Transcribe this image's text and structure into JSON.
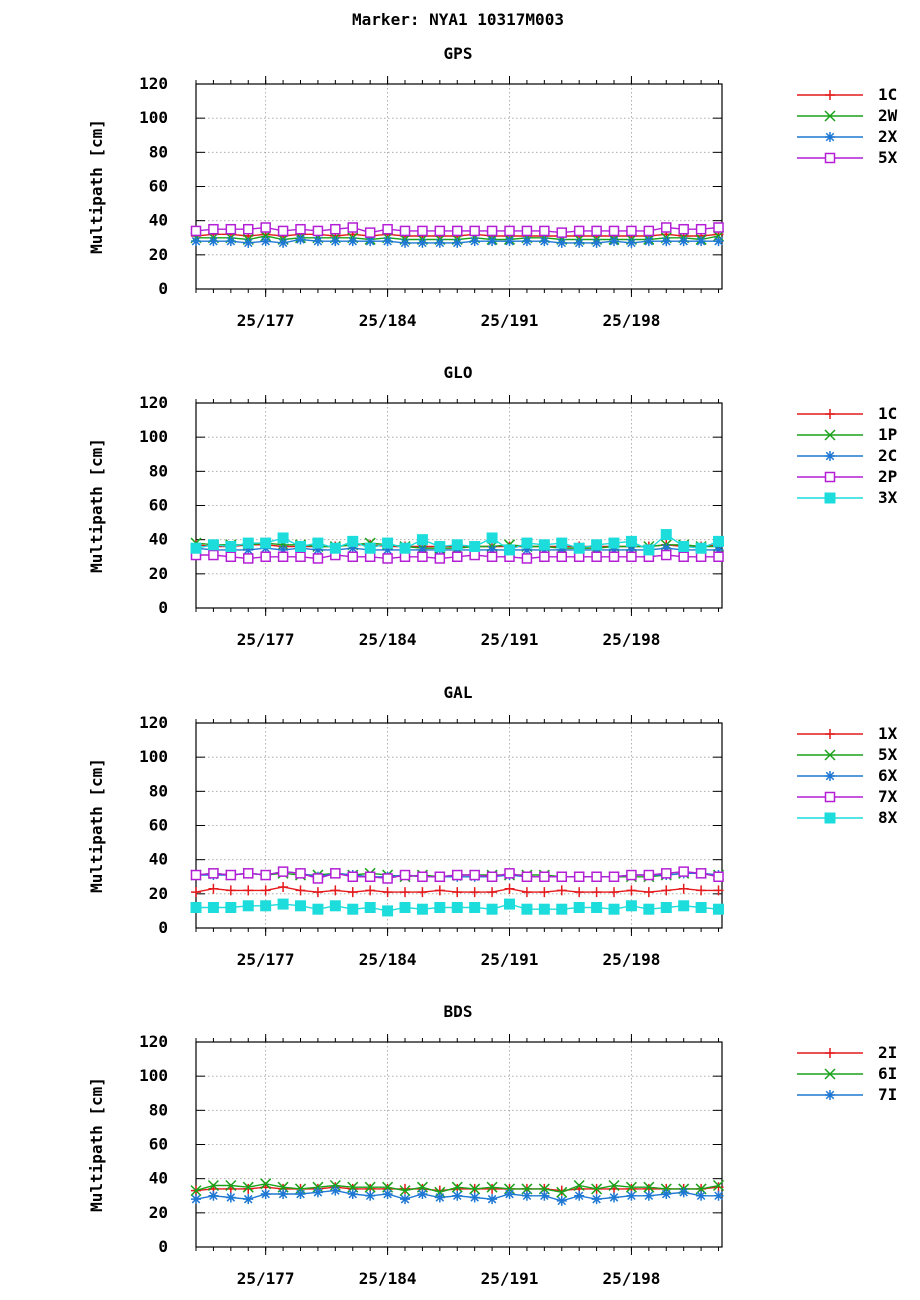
{
  "figure_title": "Marker: NYA1 10317M003",
  "chart_data": [
    {
      "type": "line",
      "title": "GPS",
      "ylabel": "Multipath [cm]",
      "ylim": [
        0,
        120
      ],
      "yticks": [
        "0",
        "20",
        "40",
        "60",
        "80",
        "100",
        "120"
      ],
      "x_range": [
        173,
        203.2
      ],
      "xticks": [
        {
          "value": 177,
          "label": "25/177"
        },
        {
          "value": 184,
          "label": "25/184"
        },
        {
          "value": 191,
          "label": "25/191"
        },
        {
          "value": 198,
          "label": "25/198"
        }
      ],
      "grid": true,
      "legend_position": "right",
      "x": [
        173,
        174,
        175,
        176,
        177,
        178,
        179,
        180,
        181,
        182,
        183,
        184,
        185,
        186,
        187,
        188,
        189,
        190,
        191,
        192,
        193,
        194,
        195,
        196,
        197,
        198,
        199,
        200,
        201,
        202,
        203
      ],
      "series": [
        {
          "name": "1C",
          "color": "#e41a1c",
          "marker": "plus",
          "values": [
            31,
            32,
            32,
            31,
            32,
            31,
            32,
            32,
            31,
            32,
            31,
            32,
            31,
            31,
            31,
            31,
            32,
            31,
            31,
            31,
            31,
            31,
            31,
            31,
            31,
            31,
            31,
            32,
            31,
            31,
            32
          ]
        },
        {
          "name": "2W",
          "color": "#1aa31a",
          "marker": "x",
          "values": [
            30,
            30,
            30,
            29,
            31,
            29,
            30,
            30,
            30,
            30,
            29,
            30,
            29,
            29,
            29,
            29,
            30,
            29,
            29,
            30,
            30,
            29,
            29,
            29,
            29,
            29,
            29,
            30,
            30,
            29,
            31
          ]
        },
        {
          "name": "2X",
          "color": "#1f78d4",
          "marker": "star",
          "values": [
            28,
            28,
            28,
            27,
            28,
            27,
            29,
            28,
            28,
            28,
            28,
            28,
            27,
            27,
            27,
            27,
            28,
            28,
            28,
            28,
            28,
            27,
            27,
            27,
            28,
            27,
            28,
            28,
            28,
            28,
            28
          ]
        },
        {
          "name": "5X",
          "color": "#b41fd6",
          "marker": "square",
          "values": [
            34,
            35,
            35,
            35,
            36,
            34,
            35,
            34,
            35,
            36,
            33,
            35,
            34,
            34,
            34,
            34,
            34,
            34,
            34,
            34,
            34,
            33,
            34,
            34,
            34,
            34,
            34,
            36,
            35,
            35,
            36
          ]
        }
      ]
    },
    {
      "type": "line",
      "title": "GLO",
      "ylabel": "Multipath [cm]",
      "ylim": [
        0,
        120
      ],
      "yticks": [
        "0",
        "20",
        "40",
        "60",
        "80",
        "100",
        "120"
      ],
      "x_range": [
        173,
        203.2
      ],
      "xticks": [
        {
          "value": 177,
          "label": "25/177"
        },
        {
          "value": 184,
          "label": "25/184"
        },
        {
          "value": 191,
          "label": "25/191"
        },
        {
          "value": 198,
          "label": "25/198"
        }
      ],
      "grid": true,
      "legend_position": "right",
      "x": [
        173,
        174,
        175,
        176,
        177,
        178,
        179,
        180,
        181,
        182,
        183,
        184,
        185,
        186,
        187,
        188,
        189,
        190,
        191,
        192,
        193,
        194,
        195,
        196,
        197,
        198,
        199,
        200,
        201,
        202,
        203
      ],
      "series": [
        {
          "name": "1C",
          "color": "#e41a1c",
          "marker": "plus",
          "values": [
            37,
            36,
            36,
            37,
            37,
            36,
            36,
            36,
            36,
            37,
            37,
            36,
            36,
            36,
            36,
            36,
            36,
            36,
            36,
            36,
            36,
            36,
            36,
            36,
            36,
            36,
            36,
            37,
            36,
            36,
            37
          ]
        },
        {
          "name": "1P",
          "color": "#1aa31a",
          "marker": "x",
          "values": [
            38,
            37,
            37,
            37,
            38,
            37,
            37,
            36,
            36,
            37,
            38,
            37,
            36,
            35,
            35,
            35,
            36,
            36,
            37,
            36,
            36,
            35,
            35,
            35,
            36,
            36,
            36,
            37,
            37,
            36,
            36
          ]
        },
        {
          "name": "2C",
          "color": "#1f78d4",
          "marker": "star",
          "values": [
            35,
            34,
            34,
            34,
            35,
            34,
            35,
            34,
            34,
            35,
            34,
            34,
            34,
            34,
            34,
            34,
            34,
            34,
            34,
            34,
            34,
            34,
            34,
            34,
            34,
            34,
            34,
            35,
            34,
            34,
            34
          ]
        },
        {
          "name": "2P",
          "color": "#b41fd6",
          "marker": "square",
          "values": [
            31,
            31,
            30,
            29,
            30,
            30,
            30,
            29,
            31,
            30,
            30,
            29,
            30,
            30,
            29,
            30,
            31,
            30,
            30,
            29,
            30,
            30,
            30,
            30,
            30,
            30,
            30,
            31,
            30,
            30,
            30
          ]
        },
        {
          "name": "3X",
          "color": "#1cdcdc",
          "marker": "filled-square",
          "values": [
            35,
            37,
            36,
            38,
            38,
            41,
            36,
            38,
            35,
            39,
            35,
            38,
            35,
            40,
            36,
            37,
            36,
            41,
            34,
            38,
            37,
            38,
            35,
            37,
            38,
            39,
            34,
            43,
            36,
            35,
            39
          ]
        }
      ]
    },
    {
      "type": "line",
      "title": "GAL",
      "ylabel": "Multipath [cm]",
      "ylim": [
        0,
        120
      ],
      "yticks": [
        "0",
        "20",
        "40",
        "60",
        "80",
        "100",
        "120"
      ],
      "x_range": [
        173,
        203.2
      ],
      "xticks": [
        {
          "value": 177,
          "label": "25/177"
        },
        {
          "value": 184,
          "label": "25/184"
        },
        {
          "value": 191,
          "label": "25/191"
        },
        {
          "value": 198,
          "label": "25/198"
        }
      ],
      "grid": true,
      "legend_position": "right",
      "x": [
        173,
        174,
        175,
        176,
        177,
        178,
        179,
        180,
        181,
        182,
        183,
        184,
        185,
        186,
        187,
        188,
        189,
        190,
        191,
        192,
        193,
        194,
        195,
        196,
        197,
        198,
        199,
        200,
        201,
        202,
        203
      ],
      "series": [
        {
          "name": "1X",
          "color": "#e41a1c",
          "marker": "plus",
          "values": [
            21,
            23,
            22,
            22,
            22,
            24,
            22,
            21,
            22,
            21,
            22,
            21,
            21,
            21,
            22,
            21,
            21,
            21,
            23,
            21,
            21,
            22,
            21,
            21,
            21,
            22,
            21,
            22,
            23,
            22,
            22
          ]
        },
        {
          "name": "5X",
          "color": "#1aa31a",
          "marker": "x",
          "values": [
            31,
            32,
            31,
            32,
            31,
            32,
            31,
            31,
            32,
            31,
            32,
            31,
            30,
            31,
            30,
            31,
            31,
            31,
            31,
            31,
            31,
            30,
            30,
            30,
            30,
            30,
            30,
            31,
            32,
            32,
            31
          ]
        },
        {
          "name": "6X",
          "color": "#1f78d4",
          "marker": "star",
          "values": [
            31,
            31,
            31,
            32,
            31,
            33,
            32,
            30,
            32,
            31,
            30,
            30,
            31,
            30,
            30,
            30,
            30,
            30,
            31,
            30,
            30,
            30,
            30,
            30,
            30,
            31,
            31,
            31,
            32,
            32,
            31
          ]
        },
        {
          "name": "7X",
          "color": "#b41fd6",
          "marker": "square",
          "values": [
            31,
            32,
            31,
            32,
            31,
            33,
            32,
            29,
            32,
            30,
            30,
            29,
            31,
            30,
            30,
            31,
            31,
            30,
            32,
            30,
            30,
            30,
            30,
            30,
            30,
            31,
            31,
            32,
            33,
            32,
            30
          ]
        },
        {
          "name": "8X",
          "color": "#1cdcdc",
          "marker": "filled-square",
          "values": [
            12,
            12,
            12,
            13,
            13,
            14,
            13,
            11,
            13,
            11,
            12,
            10,
            12,
            11,
            12,
            12,
            12,
            11,
            14,
            11,
            11,
            11,
            12,
            12,
            11,
            13,
            11,
            12,
            13,
            12,
            11
          ]
        }
      ]
    },
    {
      "type": "line",
      "title": "BDS",
      "ylabel": "Multipath [cm]",
      "ylim": [
        0,
        120
      ],
      "yticks": [
        "0",
        "20",
        "40",
        "60",
        "80",
        "100",
        "120"
      ],
      "x_range": [
        173,
        203.2
      ],
      "xticks": [
        {
          "value": 177,
          "label": "25/177"
        },
        {
          "value": 184,
          "label": "25/184"
        },
        {
          "value": 191,
          "label": "25/191"
        },
        {
          "value": 198,
          "label": "25/198"
        }
      ],
      "grid": true,
      "legend_position": "right",
      "x": [
        173,
        174,
        175,
        176,
        177,
        178,
        179,
        180,
        181,
        182,
        183,
        184,
        185,
        186,
        187,
        188,
        189,
        190,
        191,
        192,
        193,
        194,
        195,
        196,
        197,
        198,
        199,
        200,
        201,
        202,
        203
      ],
      "series": [
        {
          "name": "2I",
          "color": "#e41a1c",
          "marker": "plus",
          "values": [
            33,
            34,
            34,
            34,
            35,
            34,
            34,
            34,
            35,
            34,
            34,
            34,
            34,
            34,
            33,
            34,
            34,
            34,
            34,
            34,
            34,
            33,
            34,
            34,
            34,
            34,
            34,
            34,
            34,
            34,
            35
          ]
        },
        {
          "name": "6I",
          "color": "#1aa31a",
          "marker": "x",
          "values": [
            33,
            36,
            36,
            35,
            37,
            35,
            34,
            35,
            36,
            35,
            35,
            35,
            33,
            35,
            32,
            35,
            34,
            35,
            34,
            34,
            34,
            32,
            36,
            34,
            36,
            35,
            35,
            34,
            34,
            34,
            36
          ]
        },
        {
          "name": "7I",
          "color": "#1f78d4",
          "marker": "star",
          "values": [
            28,
            30,
            29,
            28,
            31,
            31,
            31,
            32,
            33,
            31,
            30,
            31,
            28,
            31,
            29,
            30,
            29,
            28,
            31,
            30,
            30,
            27,
            30,
            28,
            29,
            30,
            30,
            31,
            32,
            30,
            30
          ]
        }
      ]
    }
  ]
}
